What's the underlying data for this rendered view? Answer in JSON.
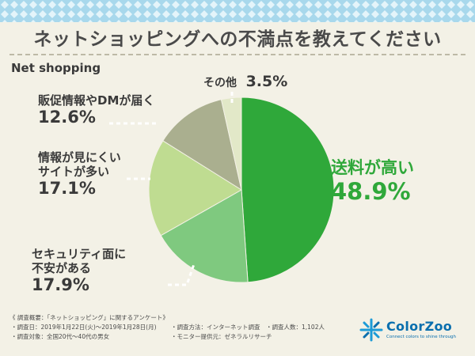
{
  "header": {
    "title": "ネットショッピングへの不満点を教えてください",
    "subtitle": "Net shopping"
  },
  "chart_data": {
    "type": "pie",
    "slices": [
      {
        "label": "送料が高い",
        "value": 48.9,
        "display": "48.9%",
        "color": "#2fa83a"
      },
      {
        "label": "セキュリティ面に不安がある",
        "value": 17.9,
        "display": "17.9%",
        "color": "#7fc97f"
      },
      {
        "label": "情報が見にくいサイトが多い",
        "value": 17.1,
        "display": "17.1%",
        "color": "#bfdc91"
      },
      {
        "label": "販促情報やDMが届く",
        "value": 12.6,
        "display": "12.6%",
        "color": "#aaaf8f"
      },
      {
        "label": "その他",
        "value": 3.5,
        "display": "3.5%",
        "color": "#e2e8c8"
      }
    ]
  },
  "labels": {
    "shipping_name": "送料が高い",
    "security_line1": "セキュリティ面に",
    "security_line2": "不安がある",
    "info_line1": "情報が見にくい",
    "info_line2": "サイトが多い",
    "dm_name": "販促情報やDMが届く",
    "other_name": "その他"
  },
  "footer": {
    "overview": "《 調査概要：「ネットショッピング」に関するアンケート》",
    "date": "・調査日：2019年1月22日(火)〜2019年1月28日(月)",
    "method": "・調査方法：インターネット調査",
    "count": "・調査人数：1,102人",
    "target": "・調査対象：全国20代〜40代の男女",
    "provider": "・モニター提供元：ゼネラルリサーチ"
  },
  "brand": {
    "name": "ColorZoo",
    "tagline": "Connect colors to shine through"
  },
  "colors": {
    "accent": "#2fa83a",
    "background": "#f3f1e6",
    "brand": "#0a6fae"
  }
}
